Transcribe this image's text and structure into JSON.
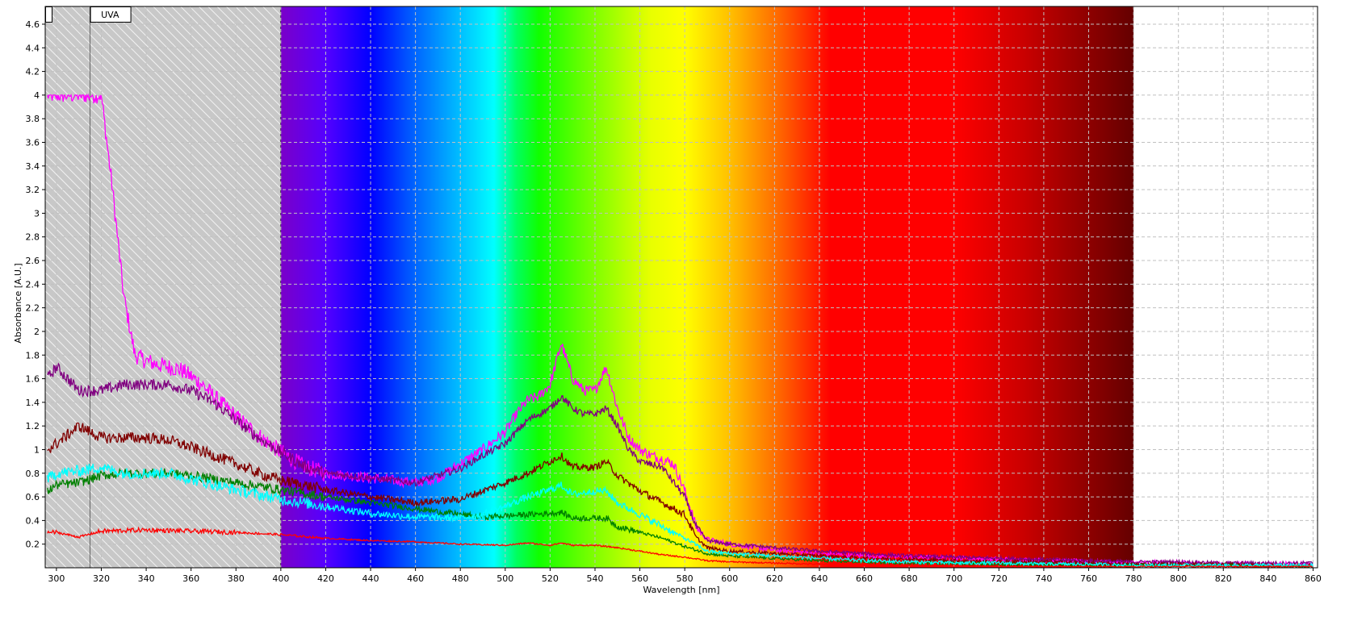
{
  "chart_data": {
    "type": "line",
    "title": "",
    "xlabel": "Wavelength [nm]",
    "ylabel": "Absorbance [A.U.]",
    "xlim": [
      295,
      862
    ],
    "ylim": [
      0,
      4.75
    ],
    "x_ticks": [
      300,
      320,
      340,
      360,
      380,
      400,
      420,
      440,
      460,
      480,
      500,
      520,
      540,
      560,
      580,
      600,
      620,
      640,
      660,
      680,
      700,
      720,
      740,
      760,
      780,
      800,
      820,
      840,
      860
    ],
    "y_ticks": [
      0.2,
      0.4,
      0.6,
      0.8,
      1,
      1.2,
      1.4,
      1.6,
      1.8,
      2,
      2.2,
      2.4,
      2.6,
      2.8,
      3,
      3.2,
      3.4,
      3.6,
      3.8,
      4,
      4.2,
      4.4,
      4.6
    ],
    "grid": true,
    "grid_style": "dashed",
    "regions": [
      {
        "label": "",
        "start": 295,
        "end": 315,
        "fill": "hatched-gray"
      },
      {
        "label": "UVA",
        "start": 315,
        "end": 400,
        "fill": "hatched-gray"
      },
      {
        "label": "",
        "start": 400,
        "end": 780,
        "fill": "visible-spectrum"
      }
    ],
    "spectrum_colors": [
      {
        "nm": 400,
        "color": "#7a00c8"
      },
      {
        "nm": 420,
        "color": "#5500ff"
      },
      {
        "nm": 440,
        "color": "#0000ff"
      },
      {
        "nm": 460,
        "color": "#0066ff"
      },
      {
        "nm": 480,
        "color": "#00bfff"
      },
      {
        "nm": 495,
        "color": "#00ffff"
      },
      {
        "nm": 505,
        "color": "#00ff60"
      },
      {
        "nm": 515,
        "color": "#10ff00"
      },
      {
        "nm": 540,
        "color": "#80ff00"
      },
      {
        "nm": 565,
        "color": "#e8ff00"
      },
      {
        "nm": 580,
        "color": "#ffff00"
      },
      {
        "nm": 600,
        "color": "#ffc000"
      },
      {
        "nm": 620,
        "color": "#ff7000"
      },
      {
        "nm": 645,
        "color": "#ff0000"
      },
      {
        "nm": 700,
        "color": "#ff0000"
      },
      {
        "nm": 730,
        "color": "#cc0000"
      },
      {
        "nm": 780,
        "color": "#640000"
      }
    ],
    "series": [
      {
        "color": "#ff00ff",
        "noise": 0.045,
        "x": [
          296,
          300,
          305,
          310,
          315,
          320,
          325,
          330,
          335,
          340,
          345,
          350,
          355,
          360,
          365,
          370,
          380,
          390,
          400,
          410,
          420,
          430,
          440,
          450,
          460,
          470,
          480,
          490,
          500,
          505,
          510,
          515,
          520,
          525,
          530,
          535,
          540,
          545,
          550,
          555,
          560,
          565,
          570,
          575,
          580,
          585,
          590,
          600,
          620,
          640,
          660,
          680,
          700,
          720,
          740,
          760,
          780,
          800,
          820,
          840,
          860
        ],
        "values": [
          4.0,
          4.0,
          4.0,
          4.0,
          4.0,
          4.0,
          3.2,
          2.3,
          1.8,
          1.75,
          1.72,
          1.7,
          1.68,
          1.62,
          1.55,
          1.45,
          1.28,
          1.12,
          0.98,
          0.86,
          0.8,
          0.78,
          0.76,
          0.74,
          0.72,
          0.76,
          0.88,
          1.0,
          1.15,
          1.3,
          1.42,
          1.45,
          1.55,
          1.9,
          1.6,
          1.5,
          1.5,
          1.7,
          1.35,
          1.1,
          1.0,
          0.95,
          0.92,
          0.88,
          0.65,
          0.35,
          0.24,
          0.2,
          0.15,
          0.12,
          0.1,
          0.09,
          0.08,
          0.07,
          0.06,
          0.05,
          0.04,
          0.04,
          0.03,
          0.03,
          0.03
        ]
      },
      {
        "color": "#800080",
        "noise": 0.03,
        "x": [
          296,
          300,
          310,
          320,
          330,
          340,
          350,
          360,
          370,
          380,
          390,
          400,
          410,
          420,
          440,
          460,
          480,
          490,
          500,
          505,
          510,
          515,
          520,
          525,
          530,
          535,
          540,
          545,
          550,
          555,
          560,
          570,
          580,
          585,
          590,
          600,
          620,
          640,
          660,
          680,
          700,
          720,
          740,
          760,
          780,
          800,
          820,
          840,
          860
        ],
        "values": [
          1.6,
          1.7,
          1.5,
          1.5,
          1.55,
          1.55,
          1.55,
          1.5,
          1.4,
          1.25,
          1.1,
          0.98,
          0.86,
          0.8,
          0.76,
          0.72,
          0.84,
          0.95,
          1.05,
          1.15,
          1.25,
          1.3,
          1.35,
          1.45,
          1.35,
          1.3,
          1.3,
          1.35,
          1.2,
          1.0,
          0.9,
          0.85,
          0.6,
          0.35,
          0.23,
          0.2,
          0.17,
          0.14,
          0.12,
          0.1,
          0.09,
          0.08,
          0.07,
          0.06,
          0.05,
          0.05,
          0.04,
          0.04,
          0.04
        ]
      },
      {
        "color": "#800000",
        "noise": 0.03,
        "x": [
          296,
          300,
          310,
          320,
          330,
          340,
          350,
          360,
          370,
          380,
          390,
          400,
          420,
          440,
          460,
          480,
          490,
          500,
          510,
          520,
          525,
          530,
          540,
          545,
          550,
          560,
          570,
          580,
          585,
          590,
          600,
          620,
          640,
          660,
          680,
          700,
          720,
          740,
          760,
          780,
          800,
          820,
          840,
          860
        ],
        "values": [
          1.0,
          1.05,
          1.2,
          1.1,
          1.1,
          1.1,
          1.08,
          1.02,
          0.95,
          0.88,
          0.8,
          0.74,
          0.66,
          0.6,
          0.55,
          0.58,
          0.65,
          0.72,
          0.8,
          0.9,
          0.95,
          0.85,
          0.85,
          0.9,
          0.78,
          0.65,
          0.55,
          0.45,
          0.26,
          0.17,
          0.14,
          0.12,
          0.1,
          0.08,
          0.07,
          0.06,
          0.05,
          0.05,
          0.04,
          0.03,
          0.03,
          0.03,
          0.02,
          0.02
        ]
      },
      {
        "color": "#008000",
        "noise": 0.025,
        "x": [
          296,
          300,
          310,
          320,
          330,
          340,
          350,
          360,
          380,
          400,
          420,
          440,
          460,
          480,
          490,
          500,
          510,
          520,
          525,
          530,
          540,
          545,
          550,
          560,
          570,
          580,
          590,
          600,
          620,
          640,
          660,
          680,
          700,
          720,
          740,
          760,
          780,
          800,
          820,
          840,
          860
        ],
        "values": [
          0.65,
          0.7,
          0.72,
          0.78,
          0.8,
          0.8,
          0.8,
          0.78,
          0.72,
          0.66,
          0.6,
          0.55,
          0.5,
          0.45,
          0.43,
          0.44,
          0.45,
          0.46,
          0.47,
          0.42,
          0.42,
          0.42,
          0.35,
          0.3,
          0.25,
          0.18,
          0.12,
          0.1,
          0.08,
          0.06,
          0.05,
          0.04,
          0.04,
          0.03,
          0.03,
          0.02,
          0.02,
          0.02,
          0.02,
          0.01,
          0.01
        ]
      },
      {
        "color": "#00ffff",
        "noise": 0.03,
        "x": [
          296,
          300,
          310,
          320,
          330,
          340,
          350,
          360,
          380,
          400,
          420,
          440,
          460,
          480,
          490,
          500,
          510,
          520,
          525,
          530,
          540,
          545,
          550,
          560,
          570,
          580,
          590,
          600,
          620,
          640,
          660,
          680,
          700,
          720,
          740,
          760,
          780,
          800,
          820,
          840,
          860
        ],
        "values": [
          0.75,
          0.8,
          0.82,
          0.85,
          0.8,
          0.8,
          0.8,
          0.75,
          0.66,
          0.58,
          0.52,
          0.46,
          0.43,
          0.42,
          0.45,
          0.52,
          0.6,
          0.66,
          0.7,
          0.62,
          0.65,
          0.65,
          0.55,
          0.45,
          0.35,
          0.25,
          0.14,
          0.12,
          0.1,
          0.08,
          0.06,
          0.05,
          0.04,
          0.04,
          0.03,
          0.03,
          0.02,
          0.02,
          0.02,
          0.02,
          0.02
        ]
      },
      {
        "color": "#ff0000",
        "noise": 0.012,
        "x": [
          296,
          300,
          310,
          320,
          340,
          360,
          380,
          400,
          420,
          440,
          460,
          480,
          500,
          510,
          520,
          525,
          530,
          540,
          550,
          560,
          570,
          580,
          590,
          600,
          620,
          640,
          660,
          680,
          700,
          720,
          740,
          760,
          780,
          800,
          820,
          840,
          860
        ],
        "values": [
          0.3,
          0.3,
          0.26,
          0.31,
          0.32,
          0.31,
          0.3,
          0.28,
          0.25,
          0.23,
          0.22,
          0.2,
          0.19,
          0.21,
          0.19,
          0.21,
          0.19,
          0.19,
          0.17,
          0.14,
          0.11,
          0.09,
          0.06,
          0.05,
          0.04,
          0.03,
          0.02,
          0.02,
          0.01,
          0.01,
          0.01,
          0.01,
          0.01,
          0.01,
          0.01,
          0.01,
          0.01
        ]
      }
    ]
  }
}
